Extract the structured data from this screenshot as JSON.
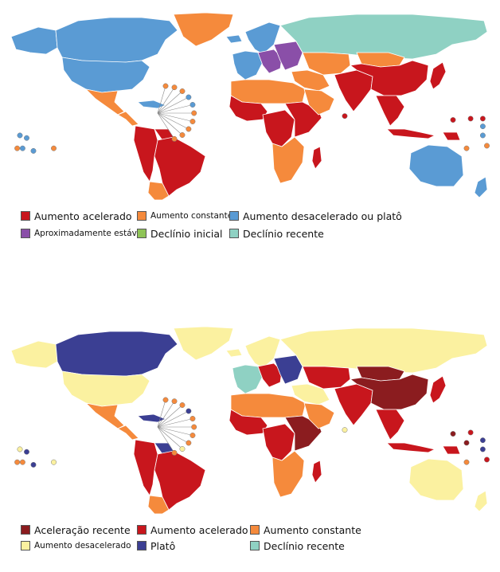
{
  "colors": {
    "red": "#c8161d",
    "orange": "#f58a3c",
    "blue": "#5a9bd4",
    "purple": "#8a4fa8",
    "green": "#8fc457",
    "teal": "#8fd1c3",
    "darkred": "#8b1c1f",
    "yellow": "#fbf1a0",
    "navy": "#3b3f93",
    "sea": "#ffffff",
    "border": "#ffffff"
  },
  "map1": {
    "legend": [
      {
        "label": "Aumento acelerado",
        "color": "#c8161d"
      },
      {
        "label": "Aumento constante",
        "color": "#f58a3c"
      },
      {
        "label": "Aumento desacelerado ou platô",
        "color": "#5a9bd4"
      },
      {
        "label": "Aproximadamente estável",
        "color": "#8a4fa8"
      },
      {
        "label": "Declínio inicial",
        "color": "#8fc457"
      },
      {
        "label": "Declínio recente",
        "color": "#8fd1c3"
      }
    ],
    "regions": {
      "canada": "#5a9bd4",
      "usa": "#5a9bd4",
      "alaska": "#5a9bd4",
      "greenland": "#f58a3c",
      "mexico": "#f58a3c",
      "central_america": "#f58a3c",
      "caribbean": "#5a9bd4",
      "brazil": "#c8161d",
      "andes": "#c8161d",
      "southern_cone": "#f58a3c",
      "guianas": "#c8161d",
      "iceland": "#5a9bd4",
      "western_europe": "#5a9bd4",
      "scandinavia": "#5a9bd4",
      "central_europe": "#8a4fa8",
      "eastern_europe": "#8a4fa8",
      "russia": "#8fd1c3",
      "north_africa": "#f58a3c",
      "west_africa": "#c8161d",
      "central_africa": "#c8161d",
      "east_africa": "#c8161d",
      "southern_africa": "#f58a3c",
      "madagascar": "#c8161d",
      "middle_east": "#f58a3c",
      "arabia": "#f58a3c",
      "central_asia": "#f58a3c",
      "south_asia": "#c8161d",
      "china": "#c8161d",
      "mongolia": "#f58a3c",
      "southeast_asia": "#c8161d",
      "japan": "#c8161d",
      "indonesia": "#c8161d",
      "australia": "#5a9bd4",
      "new_zealand": "#5a9bd4",
      "png": "#c8161d"
    },
    "caribbean_callouts": [
      "#f58a3c",
      "#f58a3c",
      "#f58a3c",
      "#5a9bd4",
      "#5a9bd4",
      "#f58a3c",
      "#f58a3c",
      "#f58a3c",
      "#f58a3c",
      "#f58a3c"
    ],
    "islands": [
      {
        "color": "#5a9bd4",
        "lon": -170,
        "lat": -10
      },
      {
        "color": "#5a9bd4",
        "lon": -165,
        "lat": -12
      },
      {
        "color": "#5a9bd4",
        "lon": -168,
        "lat": -20
      },
      {
        "color": "#5a9bd4",
        "lon": -160,
        "lat": -22
      },
      {
        "color": "#f58a3c",
        "lon": -172,
        "lat": -20
      },
      {
        "color": "#f58a3c",
        "lon": -145,
        "lat": -20
      },
      {
        "color": "#c8161d",
        "lon": 150,
        "lat": 2
      },
      {
        "color": "#c8161d",
        "lon": 163,
        "lat": 3
      },
      {
        "color": "#5a9bd4",
        "lon": 172,
        "lat": -3
      },
      {
        "color": "#c8161d",
        "lon": 172,
        "lat": 3
      },
      {
        "color": "#f58a3c",
        "lon": 160,
        "lat": -20
      },
      {
        "color": "#5a9bd4",
        "lon": 172,
        "lat": -10
      },
      {
        "color": "#f58a3c",
        "lon": 175,
        "lat": -18
      },
      {
        "color": "#c8161d",
        "lon": 70,
        "lat": 5
      }
    ]
  },
  "map2": {
    "legend": [
      {
        "label": "Aceleração recente",
        "color": "#8b1c1f"
      },
      {
        "label": "Aumento acelerado",
        "color": "#c8161d"
      },
      {
        "label": "Aumento constante",
        "color": "#f58a3c"
      },
      {
        "label": "Aumento desacelerado",
        "color": "#fbf1a0"
      },
      {
        "label": "Platô",
        "color": "#3b3f93"
      },
      {
        "label": "Declínio recente",
        "color": "#8fd1c3"
      }
    ],
    "regions": {
      "canada": "#3b3f93",
      "usa": "#fbf1a0",
      "alaska": "#fbf1a0",
      "greenland": "#fbf1a0",
      "mexico": "#f58a3c",
      "central_america": "#f58a3c",
      "caribbean": "#3b3f93",
      "brazil": "#c8161d",
      "andes": "#c8161d",
      "southern_cone": "#f58a3c",
      "guianas": "#3b3f93",
      "iceland": "#fbf1a0",
      "western_europe": "#8fd1c3",
      "scandinavia": "#fbf1a0",
      "central_europe": "#c8161d",
      "eastern_europe": "#3b3f93",
      "russia": "#fbf1a0",
      "north_africa": "#f58a3c",
      "west_africa": "#c8161d",
      "central_africa": "#c8161d",
      "east_africa": "#8b1c1f",
      "southern_africa": "#f58a3c",
      "madagascar": "#c8161d",
      "middle_east": "#fbf1a0",
      "arabia": "#f58a3c",
      "central_asia": "#c8161d",
      "south_asia": "#c8161d",
      "china": "#8b1c1f",
      "mongolia": "#8b1c1f",
      "southeast_asia": "#c8161d",
      "japan": "#c8161d",
      "indonesia": "#c8161d",
      "australia": "#fbf1a0",
      "new_zealand": "#fbf1a0",
      "png": "#c8161d"
    },
    "caribbean_callouts": [
      "#f58a3c",
      "#f58a3c",
      "#f58a3c",
      "#3b3f93",
      "#f58a3c",
      "#f58a3c",
      "#f58a3c",
      "#f58a3c",
      "#fbf1a0",
      "#f58a3c"
    ],
    "islands": [
      {
        "color": "#fbf1a0",
        "lon": -170,
        "lat": -10
      },
      {
        "color": "#3b3f93",
        "lon": -165,
        "lat": -12
      },
      {
        "color": "#f58a3c",
        "lon": -168,
        "lat": -20
      },
      {
        "color": "#3b3f93",
        "lon": -160,
        "lat": -22
      },
      {
        "color": "#fbf1a0",
        "lon": -145,
        "lat": -20
      },
      {
        "color": "#f58a3c",
        "lon": -172,
        "lat": -20
      },
      {
        "color": "#8b1c1f",
        "lon": 150,
        "lat": 2
      },
      {
        "color": "#c8161d",
        "lon": 163,
        "lat": 3
      },
      {
        "color": "#3b3f93",
        "lon": 172,
        "lat": -3
      },
      {
        "color": "#8b1c1f",
        "lon": 160,
        "lat": -5
      },
      {
        "color": "#f58a3c",
        "lon": 160,
        "lat": -20
      },
      {
        "color": "#3b3f93",
        "lon": 172,
        "lat": -10
      },
      {
        "color": "#c8161d",
        "lon": 175,
        "lat": -18
      },
      {
        "color": "#fbf1a0",
        "lon": 70,
        "lat": 5
      }
    ]
  }
}
